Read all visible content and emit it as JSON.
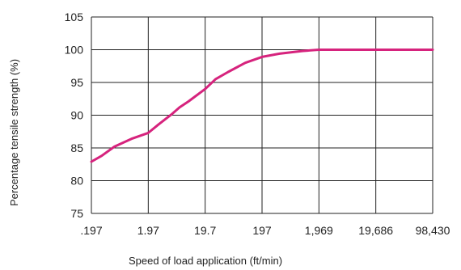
{
  "chart_data": {
    "type": "line",
    "title": "",
    "xlabel": "Speed of load application (ft/min)",
    "ylabel": "Percentage tensile strength (%)",
    "x_tick_labels": [
      ".197",
      "1.97",
      "19.7",
      "197",
      "1,969",
      "19,686",
      "98,430"
    ],
    "y_ticks": [
      75,
      80,
      85,
      90,
      95,
      100,
      105
    ],
    "ylim": [
      75,
      105
    ],
    "grid": true,
    "line_color": "#d6237d",
    "grid_color": "#222222",
    "series": [
      {
        "name": "",
        "x": [
          0.197,
          0.3,
          0.5,
          1.0,
          1.97,
          3.0,
          5.0,
          7.0,
          10.0,
          19.7,
          30.0,
          50.0,
          100.0,
          197.0,
          400.0,
          1000.0,
          1969.0,
          19686.0,
          98430.0
        ],
        "y": [
          82.9,
          83.8,
          85.2,
          86.4,
          87.3,
          88.6,
          90.1,
          91.2,
          92.1,
          94.0,
          95.5,
          96.6,
          98.0,
          98.9,
          99.4,
          99.8,
          100.0,
          100.0,
          100.0
        ]
      }
    ]
  }
}
